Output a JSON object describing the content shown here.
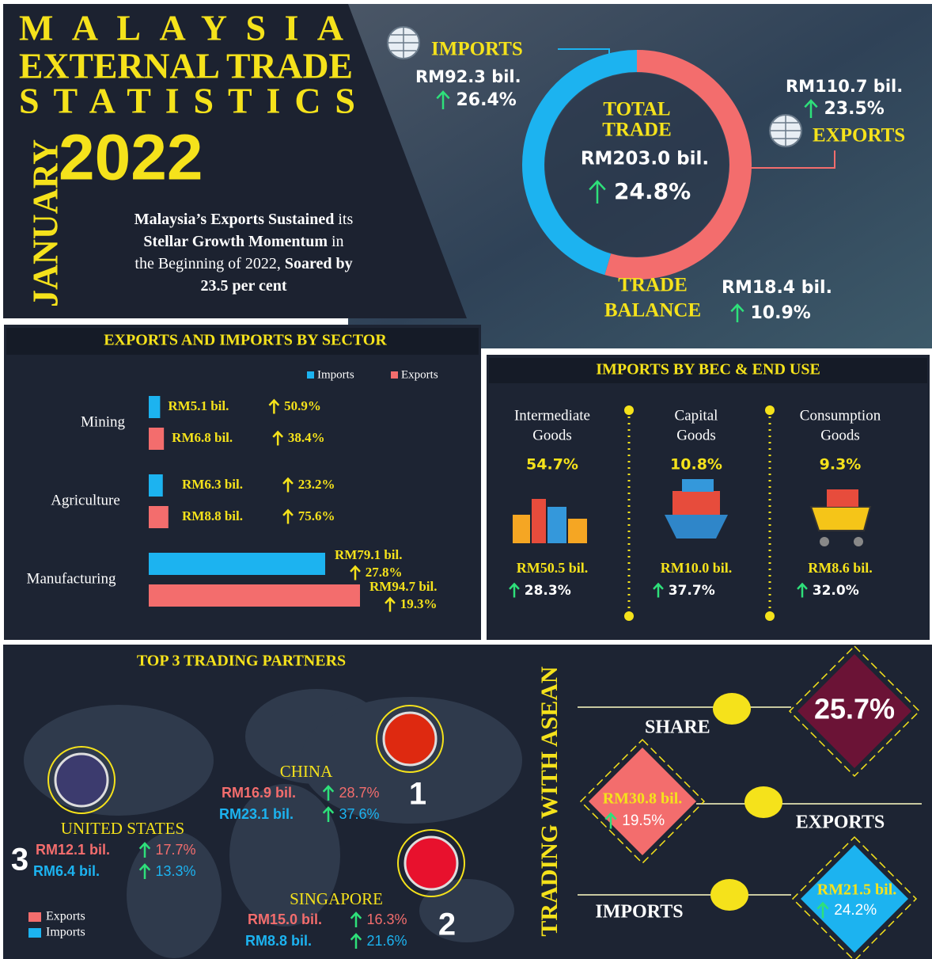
{
  "header": {
    "title_lines": [
      "MALAYSIA",
      "EXTERNAL TRADE",
      "STATISTICS"
    ],
    "month": "JANUARY",
    "year": "2022",
    "summary": [
      [
        {
          "text": "Malaysia’s Exports Sustained",
          "bold": true
        },
        {
          "text": " its",
          "bold": false
        }
      ],
      [
        {
          "text": "Stellar Growth Momentum",
          "bold": true
        },
        {
          "text": " in",
          "bold": false
        }
      ],
      [
        {
          "text": "the Beginning of 2022, ",
          "bold": false
        },
        {
          "text": "Soared by",
          "bold": true
        }
      ],
      [
        {
          "text": "23.5 per cent",
          "bold": true
        }
      ]
    ]
  },
  "total_trade": {
    "imports_title": "IMPORTS",
    "imports_value": 92.3,
    "imports_text": "RM92.3 bil.",
    "imports_growth": "26.4%",
    "imports_color": "#1cb3f0",
    "exports_title": "EXPORTS",
    "exports_value": 110.7,
    "exports_text": "RM110.7 bil.",
    "exports_growth": "23.5%",
    "exports_color": "#f36d6d",
    "title_lines": [
      "TOTAL",
      "TRADE"
    ],
    "total_text": "RM203.0 bil.",
    "total_growth": "24.8%",
    "balance_title_lines": [
      "TRADE",
      "BALANCE"
    ],
    "balance_text": "RM18.4 bil.",
    "balance_growth": "10.9%"
  },
  "sectors": {
    "title": "EXPORTS AND IMPORTS BY SECTOR",
    "legend": [
      "Imports",
      "Exports"
    ],
    "colors": [
      "#1cb3f0",
      "#f36d6d"
    ],
    "items": [
      {
        "name": "Mining",
        "imports": {
          "value": 5.1,
          "label": "RM5.1 bil.",
          "growth": "50.9%"
        },
        "exports": {
          "value": 6.8,
          "label": "RM6.8 bil.",
          "growth": "38.4%"
        }
      },
      {
        "name": "Agriculture",
        "imports": {
          "value": 6.3,
          "label": "RM6.3 bil.",
          "growth": "23.2%"
        },
        "exports": {
          "value": 8.8,
          "label": "RM8.8 bil.",
          "growth": "75.6%"
        }
      },
      {
        "name": "Manufacturing",
        "imports": {
          "value": 79.1,
          "label": "RM79.1 bil.",
          "growth": "27.8%"
        },
        "exports": {
          "value": 94.7,
          "label": "RM94.7 bil.",
          "growth": "19.3%"
        }
      }
    ]
  },
  "bec": {
    "title": "IMPORTS BY BEC & END USE",
    "items": [
      {
        "name_lines": [
          "Intermediate",
          "Goods"
        ],
        "share": "54.7%",
        "value": "RM50.5 bil.",
        "growth": "28.3%"
      },
      {
        "name_lines": [
          "Capital",
          "Goods"
        ],
        "share": "10.8%",
        "value": "RM10.0 bil.",
        "growth": "37.7%"
      },
      {
        "name_lines": [
          "Consumption",
          "Goods"
        ],
        "share": "9.3%",
        "value": "RM8.6 bil.",
        "growth": "32.0%"
      }
    ]
  },
  "partners": {
    "title": "TOP 3 TRADING PARTNERS",
    "legend": [
      "Exports",
      "Imports"
    ],
    "items": [
      {
        "name": "CHINA",
        "rank": "1",
        "exports": "RM16.9 bil.",
        "exports_growth": "28.7%",
        "imports": "RM23.1 bil.",
        "imports_growth": "37.6%"
      },
      {
        "name": "SINGAPORE",
        "rank": "2",
        "exports": "RM15.0 bil.",
        "exports_growth": "16.3%",
        "imports": "RM8.8 bil.",
        "imports_growth": "21.6%"
      },
      {
        "name": "UNITED STATES",
        "rank": "3",
        "exports": "RM12.1 bil.",
        "exports_growth": "17.7%",
        "imports": "RM6.4 bil.",
        "imports_growth": "13.3%"
      }
    ]
  },
  "asean": {
    "title": "TRADING WITH ASEAN",
    "share_label": "SHARE",
    "share": "25.7%",
    "exports_label": "EXPORTS",
    "exports": "RM30.8 bil.",
    "exports_growth": "19.5%",
    "imports_label": "IMPORTS",
    "imports": "RM21.5 bil.",
    "imports_growth": "24.2%"
  }
}
